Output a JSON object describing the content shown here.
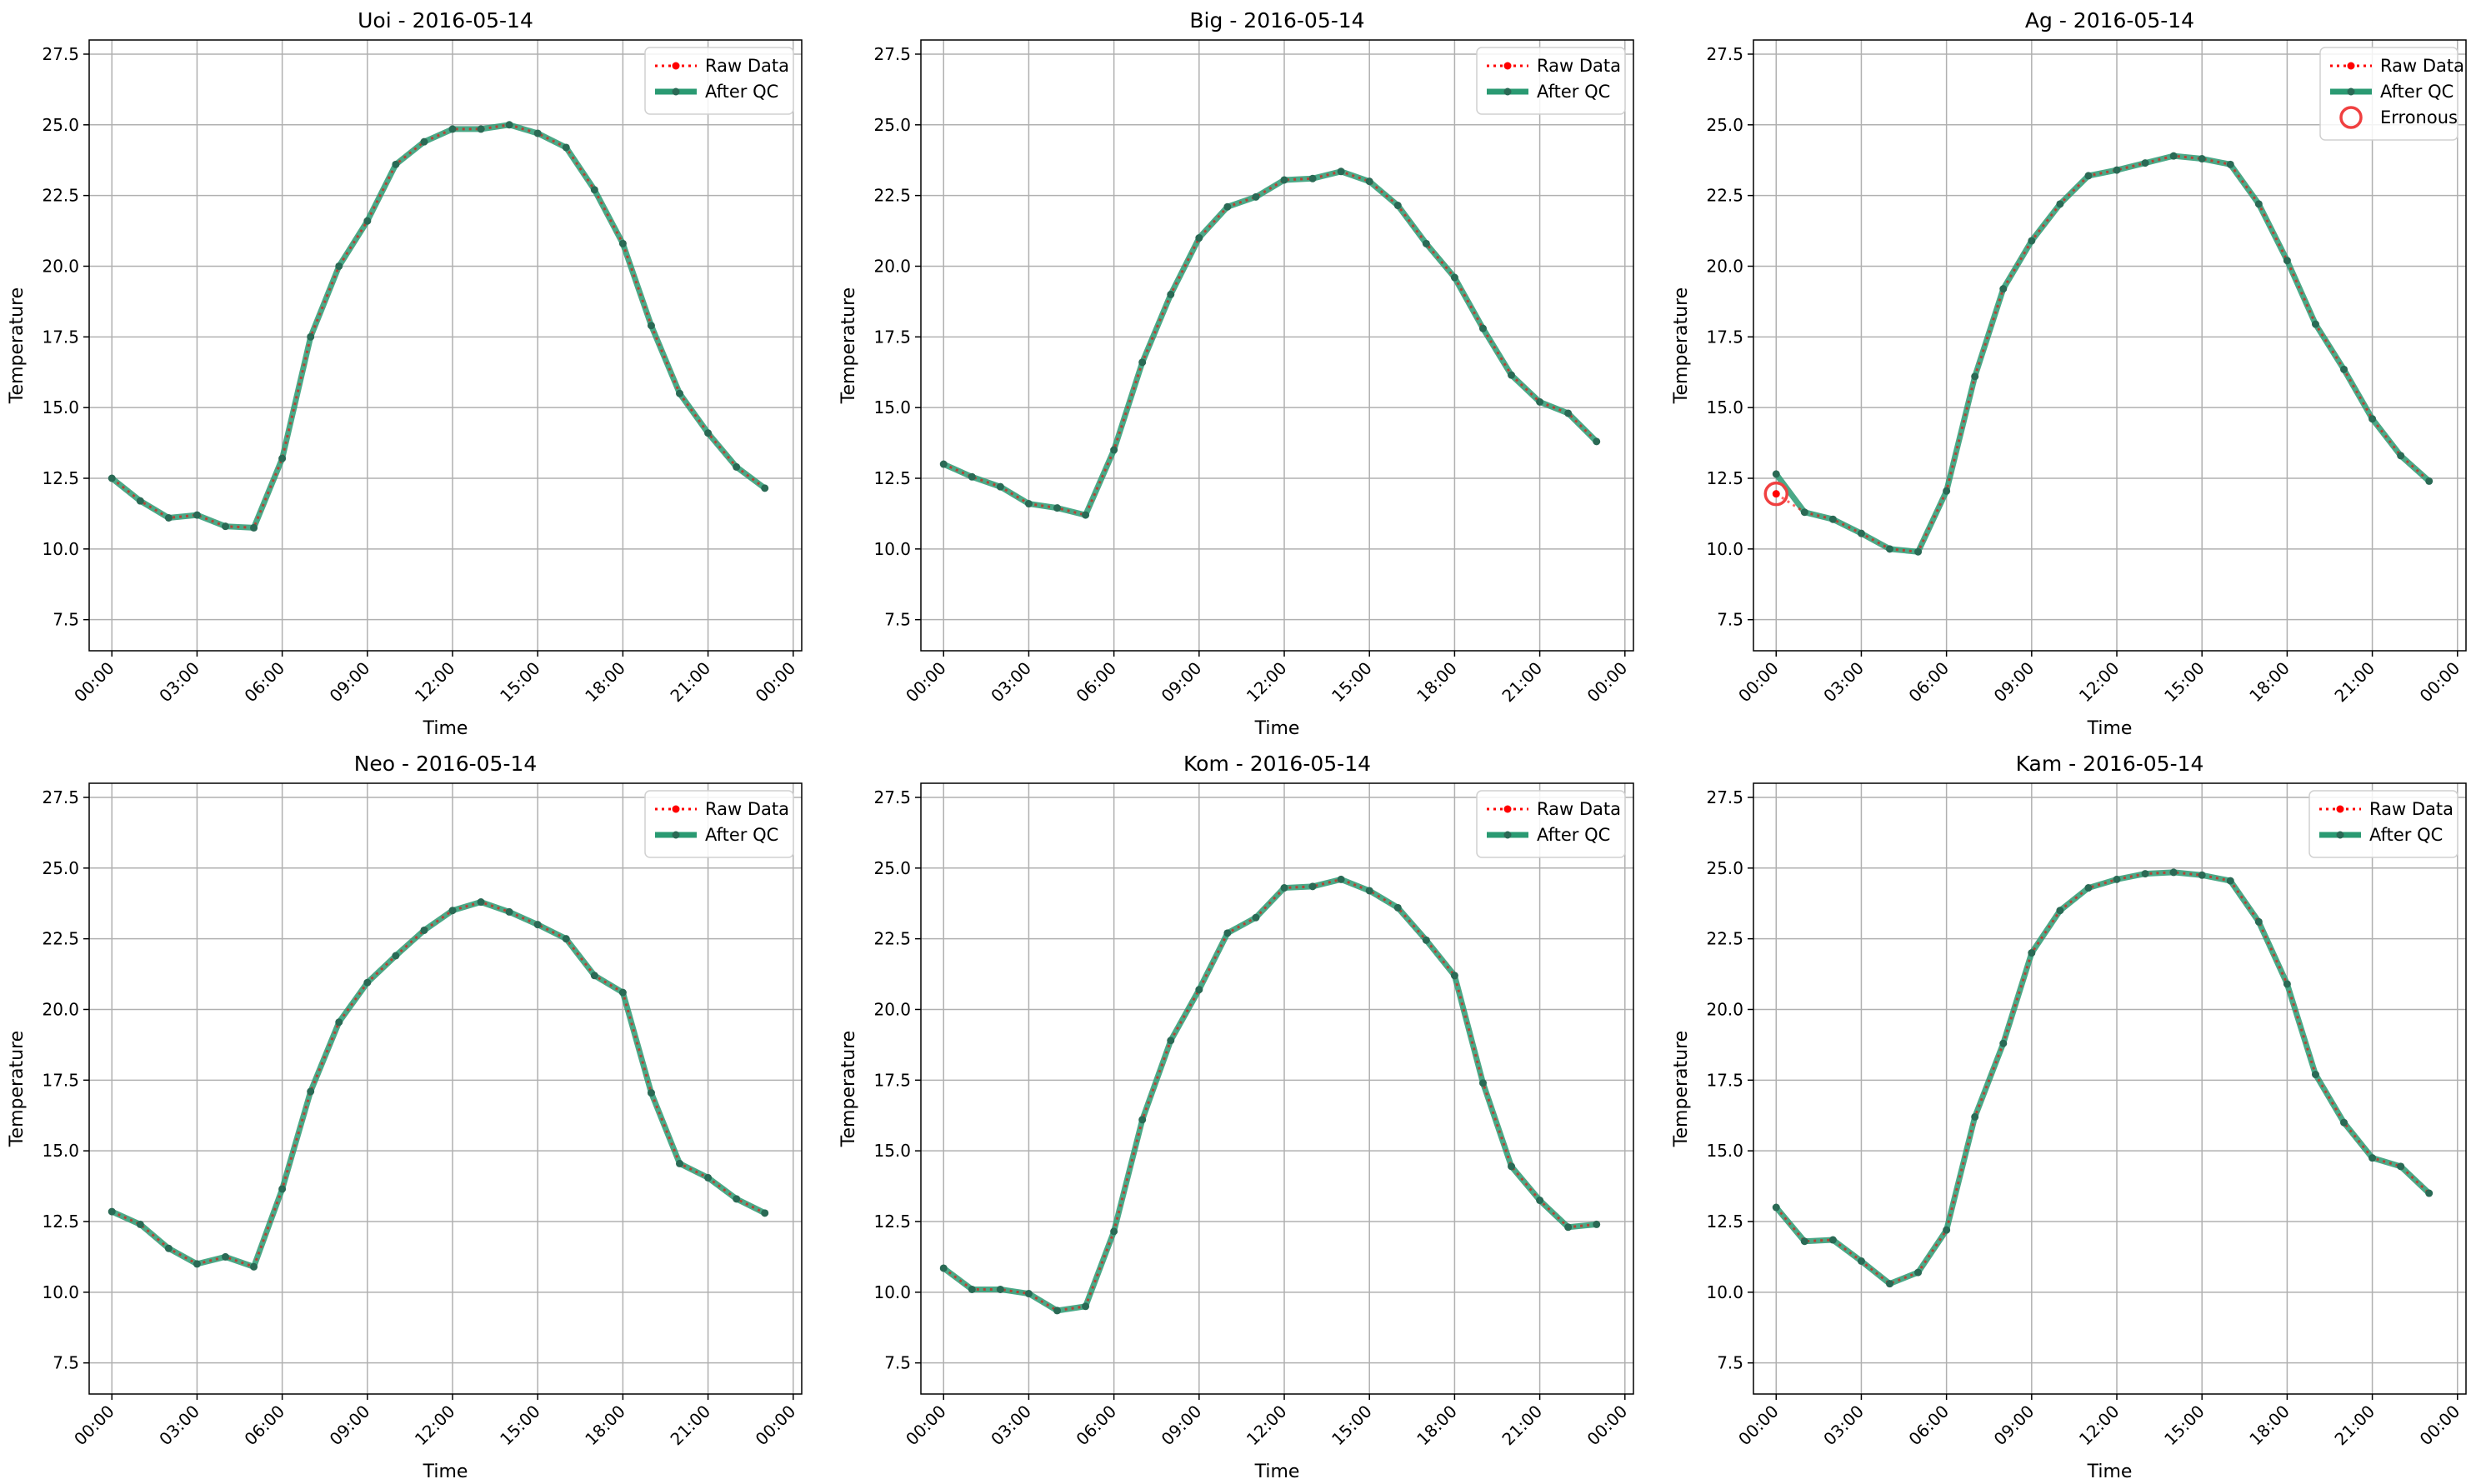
{
  "colors": {
    "raw": "#ff0000",
    "qc": "#2a9a72",
    "qc_marker": "#2a6a55",
    "erroneous": "#f04040",
    "grid": "#b0b0b0"
  },
  "chart_data": [
    {
      "type": "line",
      "title": "Uoi - 2016-05-14",
      "xlabel": "Time",
      "ylabel": "Temperature",
      "ylim": [
        6.4,
        28.0
      ],
      "xlim": [
        -0.8,
        24.3
      ],
      "yticks": [
        "7.5",
        "10.0",
        "12.5",
        "15.0",
        "17.5",
        "20.0",
        "22.5",
        "25.0",
        "27.5"
      ],
      "xticks": [
        "00:00",
        "03:00",
        "06:00",
        "09:00",
        "12:00",
        "15:00",
        "18:00",
        "21:00",
        "00:00"
      ],
      "legend_position": "top-right",
      "legend": [
        "Raw Data",
        "After QC"
      ],
      "series": [
        {
          "name": "Raw Data",
          "values": [
            12.5,
            11.7,
            11.1,
            11.2,
            10.8,
            10.75,
            13.2,
            17.5,
            20.0,
            21.6,
            23.6,
            24.4,
            24.85,
            24.85,
            25.0,
            24.7,
            24.2,
            22.7,
            20.8,
            17.9,
            15.5,
            14.1,
            12.9,
            12.15
          ]
        },
        {
          "name": "After QC",
          "values": [
            12.5,
            11.7,
            11.1,
            11.2,
            10.8,
            10.75,
            13.2,
            17.5,
            20.0,
            21.6,
            23.6,
            24.4,
            24.85,
            24.85,
            25.0,
            24.7,
            24.2,
            22.7,
            20.8,
            17.9,
            15.5,
            14.1,
            12.9,
            12.15
          ]
        }
      ],
      "erroneous": []
    },
    {
      "type": "line",
      "title": "Big - 2016-05-14",
      "xlabel": "Time",
      "ylabel": "Temperature",
      "ylim": [
        6.4,
        28.0
      ],
      "xlim": [
        -0.8,
        24.3
      ],
      "yticks": [
        "7.5",
        "10.0",
        "12.5",
        "15.0",
        "17.5",
        "20.0",
        "22.5",
        "25.0",
        "27.5"
      ],
      "xticks": [
        "00:00",
        "03:00",
        "06:00",
        "09:00",
        "12:00",
        "15:00",
        "18:00",
        "21:00",
        "00:00"
      ],
      "legend_position": "top-right",
      "legend": [
        "Raw Data",
        "After QC"
      ],
      "series": [
        {
          "name": "Raw Data",
          "values": [
            13.0,
            12.55,
            12.2,
            11.6,
            11.45,
            11.2,
            13.5,
            16.6,
            19.0,
            21.0,
            22.1,
            22.45,
            23.05,
            23.1,
            23.35,
            23.0,
            22.15,
            20.8,
            19.6,
            17.8,
            16.15,
            15.2,
            14.8,
            13.8
          ]
        },
        {
          "name": "After QC",
          "values": [
            13.0,
            12.55,
            12.2,
            11.6,
            11.45,
            11.2,
            13.5,
            16.6,
            19.0,
            21.0,
            22.1,
            22.45,
            23.05,
            23.1,
            23.35,
            23.0,
            22.15,
            20.8,
            19.6,
            17.8,
            16.15,
            15.2,
            14.8,
            13.8
          ]
        }
      ],
      "erroneous": []
    },
    {
      "type": "line",
      "title": "Ag - 2016-05-14",
      "xlabel": "Time",
      "ylabel": "Temperature",
      "ylim": [
        6.4,
        28.0
      ],
      "xlim": [
        -0.8,
        24.3
      ],
      "yticks": [
        "7.5",
        "10.0",
        "12.5",
        "15.0",
        "17.5",
        "20.0",
        "22.5",
        "25.0",
        "27.5"
      ],
      "xticks": [
        "00:00",
        "03:00",
        "06:00",
        "09:00",
        "12:00",
        "15:00",
        "18:00",
        "21:00",
        "00:00"
      ],
      "legend_position": "top-right",
      "legend": [
        "Raw Data",
        "After QC",
        "Erronous"
      ],
      "series": [
        {
          "name": "Raw Data",
          "values": [
            11.95,
            11.3,
            11.05,
            10.55,
            10.0,
            9.9,
            12.05,
            16.1,
            19.2,
            20.9,
            22.2,
            23.2,
            23.4,
            23.65,
            23.9,
            23.8,
            23.6,
            22.2,
            20.2,
            17.95,
            16.35,
            14.6,
            13.3,
            12.4
          ]
        },
        {
          "name": "After QC",
          "values": [
            12.65,
            11.3,
            11.05,
            10.55,
            10.0,
            9.9,
            12.05,
            16.1,
            19.2,
            20.9,
            22.2,
            23.2,
            23.4,
            23.65,
            23.9,
            23.8,
            23.6,
            22.2,
            20.2,
            17.95,
            16.35,
            14.6,
            13.3,
            12.4
          ]
        }
      ],
      "erroneous": [
        {
          "x": "00:00",
          "y": 11.95
        }
      ]
    },
    {
      "type": "line",
      "title": "Neo - 2016-05-14",
      "xlabel": "Time",
      "ylabel": "Temperature",
      "ylim": [
        6.4,
        28.0
      ],
      "xlim": [
        -0.8,
        24.3
      ],
      "yticks": [
        "7.5",
        "10.0",
        "12.5",
        "15.0",
        "17.5",
        "20.0",
        "22.5",
        "25.0",
        "27.5"
      ],
      "xticks": [
        "00:00",
        "03:00",
        "06:00",
        "09:00",
        "12:00",
        "15:00",
        "18:00",
        "21:00",
        "00:00"
      ],
      "legend_position": "top-right",
      "legend": [
        "Raw Data",
        "After QC"
      ],
      "series": [
        {
          "name": "Raw Data",
          "values": [
            12.85,
            12.4,
            11.55,
            11.0,
            11.25,
            10.9,
            13.65,
            17.1,
            19.55,
            20.95,
            21.9,
            22.8,
            23.5,
            23.8,
            23.45,
            23.0,
            22.5,
            21.2,
            20.6,
            17.05,
            14.55,
            14.05,
            13.3,
            12.8
          ]
        },
        {
          "name": "After QC",
          "values": [
            12.85,
            12.4,
            11.55,
            11.0,
            11.25,
            10.9,
            13.65,
            17.1,
            19.55,
            20.95,
            21.9,
            22.8,
            23.5,
            23.8,
            23.45,
            23.0,
            22.5,
            21.2,
            20.6,
            17.05,
            14.55,
            14.05,
            13.3,
            12.8
          ]
        }
      ],
      "erroneous": []
    },
    {
      "type": "line",
      "title": "Kom - 2016-05-14",
      "xlabel": "Time",
      "ylabel": "Temperature",
      "ylim": [
        6.4,
        28.0
      ],
      "xlim": [
        -0.8,
        24.3
      ],
      "yticks": [
        "7.5",
        "10.0",
        "12.5",
        "15.0",
        "17.5",
        "20.0",
        "22.5",
        "25.0",
        "27.5"
      ],
      "xticks": [
        "00:00",
        "03:00",
        "06:00",
        "09:00",
        "12:00",
        "15:00",
        "18:00",
        "21:00",
        "00:00"
      ],
      "legend_position": "top-right",
      "legend": [
        "Raw Data",
        "After QC"
      ],
      "series": [
        {
          "name": "Raw Data",
          "values": [
            10.85,
            10.1,
            10.1,
            9.95,
            9.35,
            9.5,
            12.15,
            16.1,
            18.9,
            20.7,
            22.7,
            23.25,
            24.3,
            24.35,
            24.6,
            24.2,
            23.6,
            22.45,
            21.2,
            17.4,
            14.45,
            13.25,
            12.3,
            12.4
          ]
        },
        {
          "name": "After QC",
          "values": [
            10.85,
            10.1,
            10.1,
            9.95,
            9.35,
            9.5,
            12.15,
            16.1,
            18.9,
            20.7,
            22.7,
            23.25,
            24.3,
            24.35,
            24.6,
            24.2,
            23.6,
            22.45,
            21.2,
            17.4,
            14.45,
            13.25,
            12.3,
            12.4
          ]
        }
      ],
      "erroneous": []
    },
    {
      "type": "line",
      "title": "Kam - 2016-05-14",
      "xlabel": "Time",
      "ylabel": "Temperature",
      "ylim": [
        6.4,
        28.0
      ],
      "xlim": [
        -0.8,
        24.3
      ],
      "yticks": [
        "7.5",
        "10.0",
        "12.5",
        "15.0",
        "17.5",
        "20.0",
        "22.5",
        "25.0",
        "27.5"
      ],
      "xticks": [
        "00:00",
        "03:00",
        "06:00",
        "09:00",
        "12:00",
        "15:00",
        "18:00",
        "21:00",
        "00:00"
      ],
      "legend_position": "top-right",
      "legend": [
        "Raw Data",
        "After QC"
      ],
      "series": [
        {
          "name": "Raw Data",
          "values": [
            13.0,
            11.8,
            11.85,
            11.1,
            10.3,
            10.7,
            12.2,
            16.2,
            18.8,
            22.0,
            23.5,
            24.3,
            24.6,
            24.8,
            24.85,
            24.75,
            24.55,
            23.1,
            20.9,
            17.7,
            16.0,
            14.75,
            14.45,
            13.5
          ]
        },
        {
          "name": "After QC",
          "values": [
            13.0,
            11.8,
            11.85,
            11.1,
            10.3,
            10.7,
            12.2,
            16.2,
            18.8,
            22.0,
            23.5,
            24.3,
            24.6,
            24.8,
            24.85,
            24.75,
            24.55,
            23.1,
            20.9,
            17.7,
            16.0,
            14.75,
            14.45,
            13.5
          ]
        }
      ],
      "erroneous": []
    }
  ]
}
